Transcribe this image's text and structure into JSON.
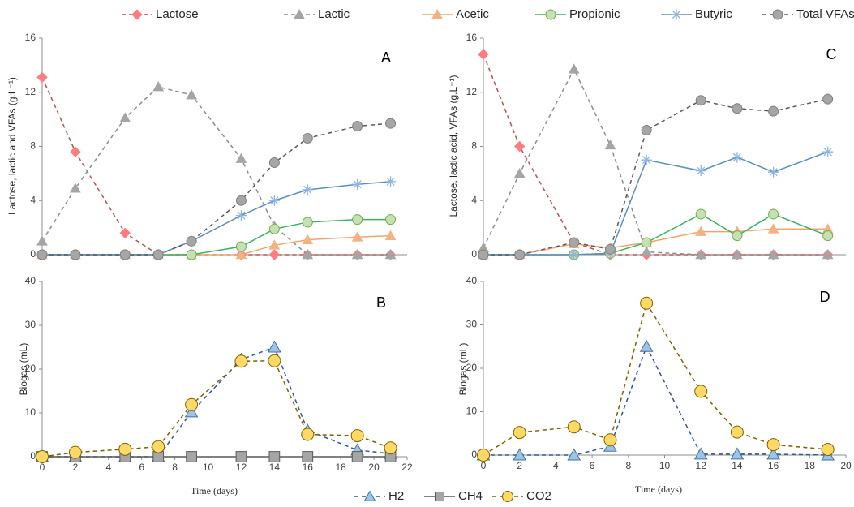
{
  "chart_data": [
    {
      "type": "line",
      "title": "A",
      "y_label": "Lactose, lactic and VFAs (g.L⁻¹)",
      "legend": "top",
      "x": [
        0,
        2,
        5,
        7,
        9,
        12,
        14,
        16,
        19,
        21
      ],
      "xlim": [
        0,
        22
      ],
      "ylim": [
        0,
        16
      ],
      "yticks": [
        0,
        4,
        8,
        12,
        16
      ],
      "series": [
        {
          "name": "Lactose",
          "color": "#c0504d",
          "marker_color": "#ff7c80",
          "marker": "diamond",
          "dashed": true,
          "values": [
            13.1,
            7.6,
            1.6,
            0,
            0,
            0,
            0,
            0,
            0,
            0
          ]
        },
        {
          "name": "Lactic",
          "color": "#8c8c8c",
          "marker_color": "#a5a5a5",
          "marker": "triangle",
          "dashed": true,
          "values": [
            1.0,
            4.9,
            10.1,
            12.4,
            11.8,
            7.1,
            2.1,
            0,
            0,
            0
          ]
        },
        {
          "name": "Acetic",
          "color": "#f4a46b",
          "marker_color": "#f4b183",
          "marker": "triangle",
          "dashed": false,
          "values": [
            0,
            0,
            0,
            0,
            0,
            0,
            0.7,
            1.1,
            1.3,
            1.4
          ]
        },
        {
          "name": "Propionic",
          "color": "#3cb060",
          "marker_color": "#c5e0b4",
          "marker": "circle",
          "dashed": false,
          "values": [
            0,
            0,
            0,
            0,
            0,
            0.6,
            1.9,
            2.4,
            2.6,
            2.6
          ]
        },
        {
          "name": "Butyric",
          "color": "#5b8cc4",
          "marker_color": "#8eb4e3",
          "marker": "star",
          "dashed": false,
          "values": [
            0,
            0,
            0,
            0,
            1.0,
            2.9,
            4.0,
            4.8,
            5.2,
            5.4
          ]
        },
        {
          "name": "Total VFAs",
          "color": "#595959",
          "marker_color": "#a6a6a6",
          "marker": "circle",
          "dashed": true,
          "values": [
            0,
            0,
            0,
            0,
            1.0,
            4.0,
            6.8,
            8.6,
            9.5,
            9.7
          ]
        }
      ]
    },
    {
      "type": "line",
      "title": "B",
      "y_label": "Biogas (mL)",
      "x_label": "Time (days)",
      "legend": "bottom",
      "x": [
        0,
        2,
        5,
        7,
        9,
        12,
        14,
        16,
        19,
        21
      ],
      "xlim": [
        0,
        22
      ],
      "xticks": [
        0,
        2,
        4,
        6,
        8,
        10,
        12,
        14,
        16,
        18,
        20,
        22
      ],
      "ylim": [
        0,
        40
      ],
      "yticks": [
        0,
        10,
        20,
        30,
        40
      ],
      "series": [
        {
          "name": "H2",
          "color": "#2f5597",
          "marker_color": "#9dc3e6",
          "marker": "triangle",
          "dashed": true,
          "values": [
            0,
            0,
            0,
            0,
            10.2,
            22.2,
            25.0,
            6.0,
            1.5,
            0.7
          ]
        },
        {
          "name": "CH4",
          "color": "#595959",
          "marker_color": "#a6a6a6",
          "marker": "square",
          "dashed": false,
          "values": [
            0,
            0,
            0,
            0,
            0,
            0,
            0,
            0,
            0,
            0
          ]
        },
        {
          "name": "CO2",
          "color": "#7f6000",
          "marker_color": "#ffd966",
          "marker": "circle",
          "dashed": true,
          "values": [
            0,
            1.0,
            1.7,
            2.3,
            11.9,
            21.8,
            21.9,
            5.1,
            4.8,
            2.0
          ]
        }
      ]
    },
    {
      "type": "line",
      "title": "C",
      "y_label": "Lactose, lactic acid, VFAs (g.L⁻¹)",
      "x": [
        0,
        2,
        5,
        7,
        9,
        12,
        14,
        16,
        19
      ],
      "xlim": [
        0,
        20
      ],
      "ylim": [
        0,
        16
      ],
      "yticks": [
        0,
        4,
        8,
        12,
        16
      ],
      "series": [
        {
          "color": "#c0504d",
          "marker_color": "#ff7c80",
          "marker": "diamond",
          "dashed": true,
          "values": [
            14.8,
            8.0,
            0.9,
            0,
            0,
            0,
            0,
            0,
            0
          ]
        },
        {
          "color": "#8c8c8c",
          "marker_color": "#a5a5a5",
          "marker": "triangle",
          "dashed": true,
          "values": [
            0.5,
            6.0,
            13.7,
            8.1,
            0.2,
            0,
            0,
            0,
            0
          ]
        },
        {
          "color": "#f4a46b",
          "marker_color": "#f4b183",
          "marker": "triangle",
          "dashed": false,
          "values": [
            0,
            0,
            0.8,
            0.5,
            0.9,
            1.7,
            1.7,
            1.9,
            1.9
          ]
        },
        {
          "color": "#3cb060",
          "marker_color": "#c5e0b4",
          "marker": "circle",
          "dashed": false,
          "values": [
            0,
            0,
            0,
            0.1,
            0.9,
            3.0,
            1.4,
            3.0,
            1.4
          ]
        },
        {
          "color": "#5b8cc4",
          "marker_color": "#8eb4e3",
          "marker": "star",
          "dashed": false,
          "values": [
            0,
            0,
            0,
            0.1,
            7.0,
            6.2,
            7.2,
            6.1,
            7.6
          ]
        },
        {
          "color": "#595959",
          "marker_color": "#a6a6a6",
          "marker": "circle",
          "dashed": true,
          "values": [
            0,
            0,
            0.9,
            0.4,
            9.2,
            11.4,
            10.8,
            10.6,
            11.5
          ]
        }
      ]
    },
    {
      "type": "line",
      "title": "D",
      "y_label": "Biogas (mL)",
      "x_label": "Time (days)",
      "x": [
        0,
        2,
        5,
        7,
        9,
        12,
        14,
        16,
        19
      ],
      "xlim": [
        0,
        20
      ],
      "xticks": [
        0,
        2,
        4,
        6,
        8,
        10,
        12,
        14,
        16,
        18,
        20
      ],
      "ylim": [
        0,
        40
      ],
      "yticks": [
        0,
        10,
        20,
        30,
        40
      ],
      "series": [
        {
          "color": "#2f5597",
          "marker_color": "#9dc3e6",
          "marker": "triangle",
          "dashed": true,
          "values": [
            0,
            0,
            0,
            2.0,
            25.0,
            0.2,
            0.2,
            0.2,
            0
          ]
        },
        {
          "color": "#7f6000",
          "marker_color": "#ffd966",
          "marker": "circle",
          "dashed": true,
          "values": [
            0,
            5.2,
            6.5,
            3.5,
            35.0,
            14.7,
            5.3,
            2.4,
            1.3
          ]
        }
      ]
    }
  ]
}
